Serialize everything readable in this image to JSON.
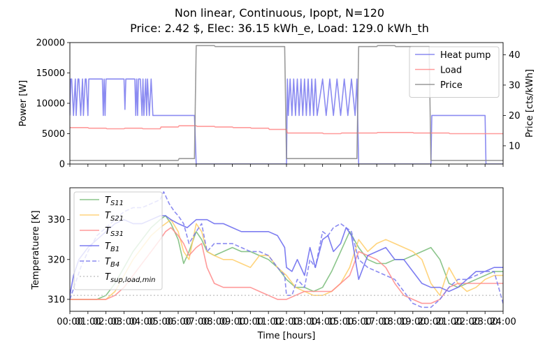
{
  "chart_data": {
    "type": "line",
    "title_line1": "Non linear, Continuous, Ipopt, N=120",
    "title_line2": "Price: 2.42 $, Elec: 36.15 kWh_e, Load: 129.0 kWh_th",
    "xlabel": "Time [hours]",
    "xlim": [
      0,
      24
    ],
    "xticks": [
      {
        "v": 0,
        "label": "00:00"
      },
      {
        "v": 1,
        "label": "01:00"
      },
      {
        "v": 2,
        "label": "02:00"
      },
      {
        "v": 3,
        "label": "03:00"
      },
      {
        "v": 4,
        "label": "04:00"
      },
      {
        "v": 5,
        "label": "05:00"
      },
      {
        "v": 6,
        "label": "06:00"
      },
      {
        "v": 7,
        "label": "07:00"
      },
      {
        "v": 8,
        "label": "08:00"
      },
      {
        "v": 9,
        "label": "09:00"
      },
      {
        "v": 10,
        "label": "10:00"
      },
      {
        "v": 11,
        "label": "11:00"
      },
      {
        "v": 12,
        "label": "12:00"
      },
      {
        "v": 13,
        "label": "13:00"
      },
      {
        "v": 14,
        "label": "14:00"
      },
      {
        "v": 15,
        "label": "15:00"
      },
      {
        "v": 16,
        "label": "16:00"
      },
      {
        "v": 17,
        "label": "17:00"
      },
      {
        "v": 18,
        "label": "18:00"
      },
      {
        "v": 19,
        "label": "19:00"
      },
      {
        "v": 20,
        "label": "20:00"
      },
      {
        "v": 21,
        "label": "21:00"
      },
      {
        "v": 22,
        "label": "22:00"
      },
      {
        "v": 23,
        "label": "23:00"
      },
      {
        "v": 24,
        "label": "24:00"
      }
    ],
    "top": {
      "ylabel": "Power [W]",
      "ylim": [
        0,
        20000
      ],
      "yticks": [
        0,
        5000,
        10000,
        15000,
        20000
      ],
      "y2label": "Price [cts/kWh]",
      "y2lim": [
        4,
        44
      ],
      "y2ticks": [
        10,
        20,
        30,
        40
      ],
      "legend_position": "upper right",
      "series": [
        {
          "name": "Heat pump",
          "axis": "left",
          "color": "#7777ee",
          "x": [
            0,
            0.05,
            0.1,
            0.2,
            0.3,
            0.35,
            0.45,
            0.5,
            0.6,
            0.7,
            0.75,
            0.85,
            0.9,
            1.0,
            1.05,
            1.1,
            1.8,
            1.85,
            1.9,
            1.95,
            2.0,
            2.05,
            2.1,
            3.0,
            3.05,
            3.1,
            3.6,
            3.65,
            3.7,
            3.75,
            3.8,
            3.9,
            4.0,
            4.05,
            4.1,
            4.2,
            4.25,
            4.3,
            4.4,
            4.5,
            4.6,
            5.0,
            6.0,
            6.9,
            7.0,
            12.0,
            12.05,
            12.1,
            12.2,
            12.3,
            12.4,
            12.5,
            12.6,
            12.7,
            12.8,
            12.9,
            13.0,
            13.1,
            13.2,
            13.3,
            13.4,
            13.5,
            13.6,
            13.7,
            14.0,
            14.2,
            14.4,
            14.6,
            14.8,
            15.0,
            15.2,
            15.4,
            15.6,
            15.8,
            15.9,
            16.0,
            20.0,
            20.05,
            23.0,
            23.05,
            24.0
          ],
          "y": [
            8000,
            14000,
            14000,
            8000,
            14000,
            8000,
            14000,
            14000,
            8000,
            14000,
            8000,
            14000,
            14000,
            8000,
            14000,
            14000,
            14000,
            8000,
            14000,
            8000,
            14000,
            14000,
            14000,
            14000,
            9000,
            14000,
            14000,
            8000,
            14000,
            8000,
            14000,
            14000,
            8000,
            14000,
            8000,
            14000,
            8000,
            14000,
            8000,
            14000,
            8000,
            8000,
            8000,
            8000,
            0,
            0,
            14000,
            8000,
            14000,
            8000,
            14000,
            8000,
            14000,
            8000,
            14000,
            8000,
            14000,
            8000,
            14000,
            8000,
            14000,
            8000,
            14000,
            8000,
            14000,
            8000,
            14000,
            8000,
            14000,
            8000,
            14000,
            8000,
            14000,
            8000,
            14000,
            0,
            0,
            8000,
            8000,
            0,
            0
          ]
        },
        {
          "name": "Load",
          "axis": "left",
          "color": "#ff8888",
          "x": [
            0,
            1,
            1.05,
            2,
            2.05,
            3,
            3.05,
            4,
            4.05,
            5,
            5.05,
            6,
            6.05,
            7,
            7.05,
            8,
            8.05,
            9,
            9.05,
            10,
            10.05,
            11,
            11.05,
            12,
            12.05,
            13,
            13.05,
            14,
            14.05,
            15,
            15.05,
            16,
            16.05,
            17,
            17.05,
            18,
            18.05,
            19,
            19.05,
            20,
            20.05,
            21,
            21.05,
            22,
            22.05,
            23,
            23.05,
            24
          ],
          "y": [
            6000,
            6000,
            5900,
            5900,
            5800,
            5800,
            5900,
            5900,
            5800,
            5800,
            6100,
            6100,
            6300,
            6300,
            6200,
            6200,
            6100,
            6100,
            6000,
            6000,
            5900,
            5900,
            5700,
            5700,
            5100,
            5100,
            5100,
            5100,
            5000,
            5000,
            5100,
            5100,
            5100,
            5100,
            5200,
            5200,
            5200,
            5200,
            5100,
            5100,
            5100,
            5100,
            5000,
            5000,
            5000,
            5000,
            5000,
            5000
          ]
        },
        {
          "name": "Price",
          "axis": "right",
          "color": "#888888",
          "x": [
            0,
            4.9,
            5.0,
            6.0,
            6.05,
            6.9,
            7.0,
            8.0,
            8.05,
            11.9,
            12.0,
            13.0,
            13.05,
            15.9,
            16.0,
            17.0,
            17.05,
            18.0,
            18.05,
            19.9,
            20.0,
            24.0
          ],
          "y": [
            5.2,
            5.2,
            5.2,
            5.2,
            5.8,
            5.8,
            43,
            43,
            42.7,
            42.7,
            5.8,
            5.8,
            5.8,
            5.8,
            42.7,
            42.7,
            43,
            43,
            42.7,
            42.7,
            5.2,
            5.2
          ]
        }
      ]
    },
    "bottom": {
      "ylabel": "Temperatuere [K]",
      "ylim": [
        307,
        338
      ],
      "yticks": [
        310,
        320,
        330
      ],
      "legend_position": "upper left",
      "series": [
        {
          "name": "T_S11",
          "color": "#77bb77",
          "dash": false,
          "x": [
            0,
            0.5,
            1,
            1.5,
            2,
            2.5,
            3,
            3.5,
            4,
            4.5,
            5,
            5.3,
            5.6,
            6,
            6.3,
            6.6,
            7,
            7.3,
            7.6,
            8,
            8.5,
            9,
            9.5,
            10,
            10.5,
            11,
            11.5,
            12,
            12.5,
            13,
            13.5,
            14,
            14.5,
            15,
            15.5,
            16,
            16.5,
            17,
            17.5,
            18,
            18.5,
            19,
            19.5,
            20,
            20.5,
            21,
            21.5,
            22,
            22.5,
            23,
            23.5,
            24
          ],
          "y": [
            310,
            310,
            310,
            310,
            311,
            314,
            318,
            322,
            325,
            328,
            330,
            331,
            329,
            325,
            319,
            322,
            327,
            325,
            322,
            321,
            322,
            323,
            322,
            322,
            321,
            320,
            318,
            315,
            313,
            313,
            312,
            313,
            317,
            322,
            327,
            323,
            320,
            319,
            319,
            320,
            320,
            321,
            322,
            323,
            320,
            314,
            313,
            314,
            315,
            316,
            317,
            317
          ]
        },
        {
          "name": "T_S21",
          "color": "#ffcc66",
          "dash": false,
          "x": [
            0,
            0.5,
            1,
            1.5,
            2,
            2.5,
            3,
            3.5,
            4,
            4.5,
            5,
            5.3,
            5.6,
            6,
            6.3,
            6.6,
            7,
            7.3,
            7.6,
            8,
            8.5,
            9,
            9.5,
            10,
            10.5,
            11,
            11.5,
            12,
            12.5,
            13,
            13.5,
            14,
            14.5,
            15,
            15.5,
            16,
            16.5,
            17,
            17.5,
            18,
            18.5,
            19,
            19.5,
            20,
            20.5,
            21,
            21.5,
            22,
            22.5,
            23,
            23.5,
            24
          ],
          "y": [
            310,
            310,
            310,
            310,
            310,
            312,
            316,
            320,
            323,
            326,
            328,
            329,
            330,
            327,
            322,
            320,
            329,
            327,
            322,
            321,
            320,
            320,
            319,
            318,
            321,
            321,
            318,
            316,
            313,
            312,
            311,
            311,
            312,
            314,
            318,
            325,
            322,
            324,
            325,
            324,
            323,
            322,
            320,
            314,
            311,
            318,
            314,
            312,
            313,
            315,
            316,
            316
          ]
        },
        {
          "name": "T_S31",
          "color": "#ff8888",
          "dash": false,
          "x": [
            0,
            0.5,
            1,
            1.5,
            2,
            2.5,
            3,
            3.5,
            4,
            4.5,
            5,
            5.3,
            5.6,
            6,
            6.3,
            6.6,
            7,
            7.3,
            7.6,
            8,
            8.5,
            9,
            9.5,
            10,
            10.5,
            11,
            11.5,
            12,
            12.5,
            13,
            13.5,
            14,
            14.5,
            15,
            15.5,
            16,
            16.5,
            17,
            17.5,
            18,
            18.5,
            19,
            19.5,
            20,
            20.5,
            21,
            21.5,
            22,
            22.5,
            23,
            23.5,
            24
          ],
          "y": [
            310,
            310,
            310,
            310,
            310,
            311,
            313,
            316,
            319,
            322,
            325,
            327,
            328,
            326,
            324,
            321,
            323,
            324,
            318,
            314,
            313,
            313,
            313,
            313,
            312,
            311,
            310,
            310,
            311,
            312,
            312,
            312,
            312,
            314,
            316,
            322,
            321,
            320,
            318,
            314,
            311,
            310,
            309,
            309,
            310,
            313,
            314,
            314,
            314,
            314,
            314,
            314
          ]
        },
        {
          "name": "T_B1",
          "color": "#6666ee",
          "dash": false,
          "x": [
            0,
            0.2,
            0.5,
            1,
            1.5,
            2,
            2.5,
            3,
            3.5,
            4,
            4.5,
            5,
            5.3,
            5.6,
            6,
            6.5,
            7,
            7.3,
            7.6,
            8,
            8.5,
            9,
            9.5,
            10,
            10.5,
            11,
            11.5,
            11.9,
            12,
            12.3,
            12.6,
            13,
            13.3,
            13.6,
            14,
            14.3,
            14.6,
            15,
            15.3,
            15.6,
            16,
            16.5,
            17,
            17.5,
            18,
            18.5,
            19,
            19.5,
            20,
            20.5,
            21,
            21.5,
            22,
            22.5,
            23,
            23.5,
            24
          ],
          "y": [
            311,
            316,
            320,
            323,
            325,
            327,
            329,
            330,
            329,
            329,
            330,
            331,
            331,
            330,
            329,
            328,
            330,
            330,
            330,
            329,
            329,
            328,
            327,
            327,
            327,
            327,
            326,
            323,
            318,
            317,
            320,
            316,
            323,
            318,
            325,
            326,
            322,
            324,
            328,
            326,
            315,
            321,
            322,
            323,
            320,
            320,
            317,
            314,
            313,
            313,
            312,
            313,
            315,
            317,
            317,
            318,
            318
          ]
        },
        {
          "name": "T_B4",
          "color": "#7777ee",
          "dash": true,
          "x": [
            0,
            0.3,
            0.6,
            1,
            1.5,
            2,
            2.5,
            3,
            3.5,
            4,
            4.5,
            5,
            5.2,
            5.5,
            5.8,
            6,
            6.3,
            6.6,
            7,
            7.3,
            7.6,
            8,
            8.5,
            9,
            9.5,
            10,
            10.5,
            11,
            11.5,
            11.9,
            12,
            12.3,
            12.6,
            13,
            13.3,
            13.6,
            14,
            14.3,
            14.6,
            15,
            15.3,
            15.6,
            16,
            16.5,
            17,
            17.5,
            18,
            18.5,
            19,
            19.5,
            20,
            20.5,
            21,
            21.5,
            22,
            22.5,
            23,
            23.5,
            24
          ],
          "y": [
            310,
            314,
            318,
            322,
            326,
            328,
            330,
            332,
            333,
            333,
            334,
            335,
            337,
            334,
            332,
            331,
            329,
            324,
            327,
            329,
            322,
            324,
            324,
            324,
            323,
            322,
            322,
            321,
            318,
            316,
            311,
            311,
            315,
            313,
            320,
            318,
            327,
            326,
            328,
            329,
            328,
            327,
            320,
            318,
            317,
            316,
            315,
            312,
            309,
            308,
            308,
            310,
            313,
            315,
            315,
            316,
            317,
            317,
            309
          ]
        },
        {
          "name": "T_sup,load,min",
          "color": "#bbbbbb",
          "dotted": true,
          "x": [
            0,
            24
          ],
          "y": [
            311,
            311
          ]
        }
      ]
    }
  }
}
